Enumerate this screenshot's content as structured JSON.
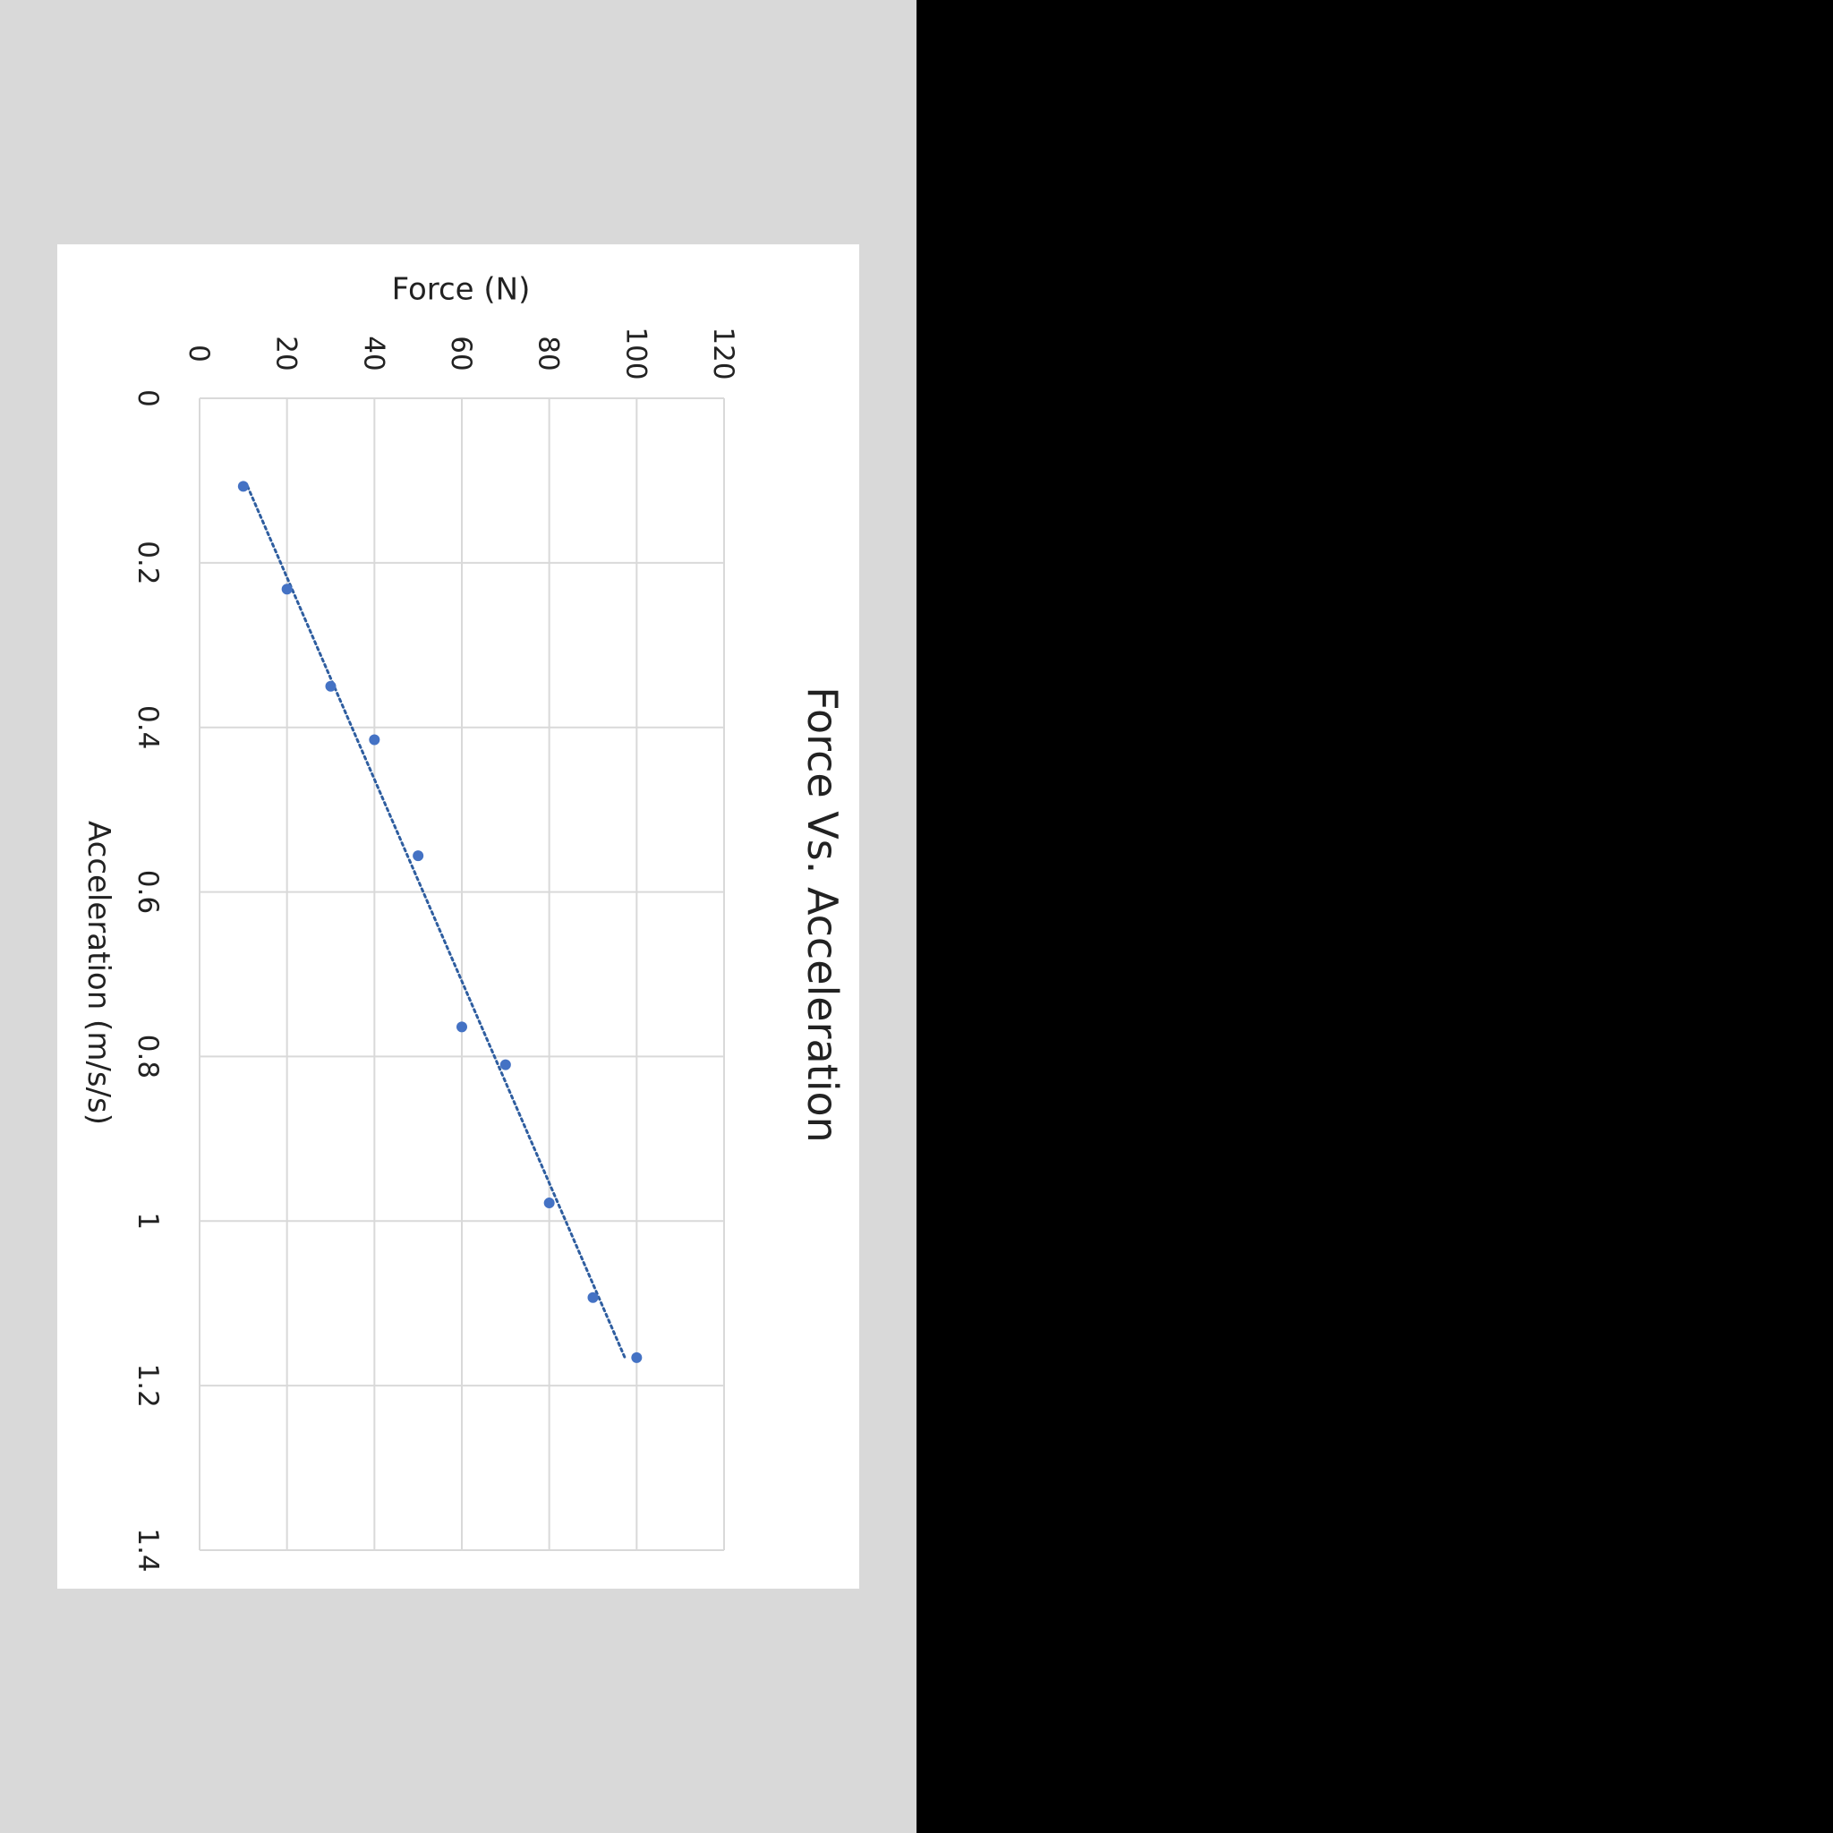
{
  "colors": {
    "outer_background": "#d9d9d9",
    "right_panel": "#000000",
    "card": "#ffffff",
    "grid": "#d9d9d9",
    "series": "#4472c4",
    "trendline": "#2e5d9f"
  },
  "chart_data": {
    "type": "scatter",
    "title": "Force Vs. Acceleration",
    "xlabel": "Acceleration (m/s/s)",
    "ylabel": "Force (N)",
    "xlim": [
      0,
      1.4
    ],
    "ylim": [
      0,
      120
    ],
    "x_ticks": [
      "0",
      "0.2",
      "0.4",
      "0.6",
      "0.8",
      "1",
      "1.2",
      "1.4"
    ],
    "y_ticks": [
      "0",
      "20",
      "40",
      "60",
      "80",
      "100",
      "120"
    ],
    "grid": true,
    "orientation": "rotated 90° clockwise",
    "series": [
      {
        "x": [
          0.107,
          0.232,
          0.35,
          0.415,
          0.556,
          0.764,
          0.81,
          0.978,
          1.093,
          1.166
        ],
        "y": [
          10,
          20,
          30,
          40,
          50,
          60,
          70,
          80,
          90,
          100
        ]
      }
    ],
    "trendline": {
      "type": "linear",
      "style": "dotted"
    }
  }
}
